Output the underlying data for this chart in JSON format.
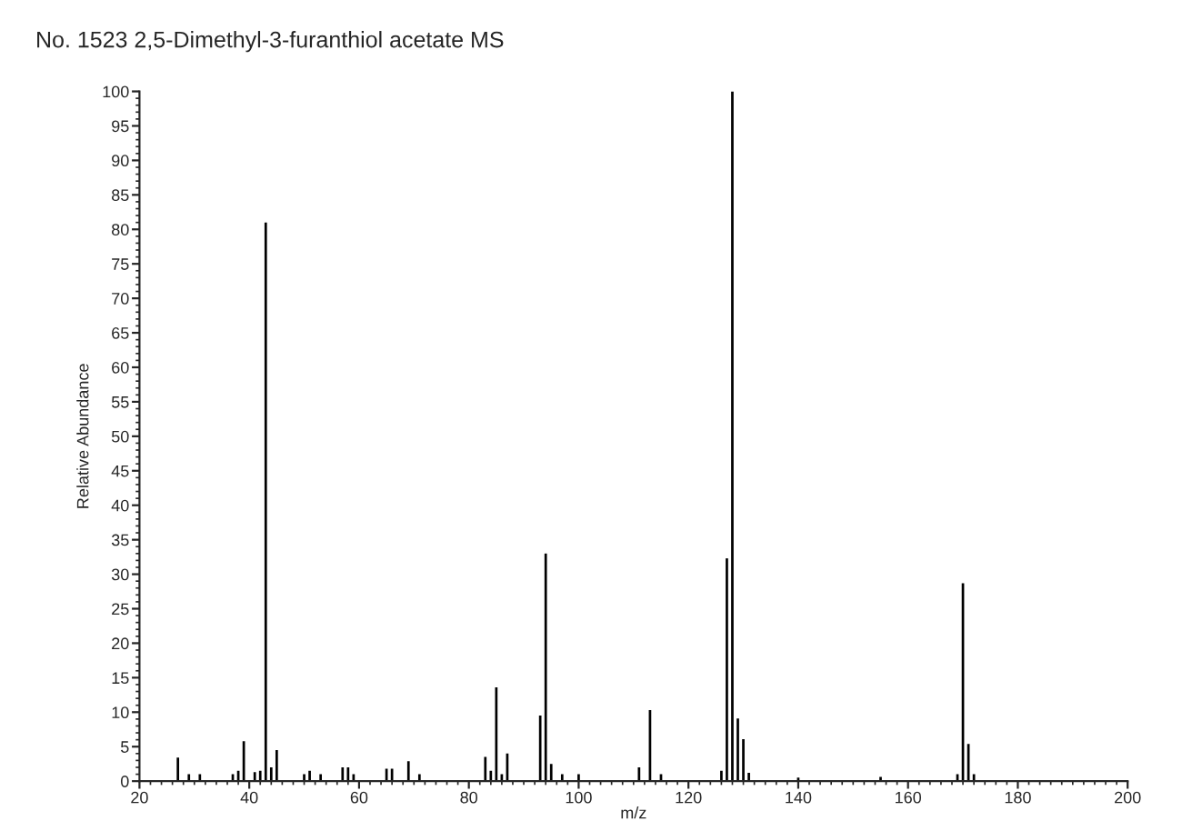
{
  "chart_data": {
    "type": "bar",
    "title": "No. 1523 2,5-Dimethyl-3-furanthiol acetate MS",
    "xlabel": "m/z",
    "ylabel": "Relative Abundance",
    "x": [
      27,
      29,
      31,
      37,
      38,
      39,
      41,
      42,
      43,
      44,
      45,
      50,
      51,
      53,
      57,
      58,
      59,
      65,
      66,
      69,
      71,
      83,
      84,
      85,
      86,
      87,
      93,
      94,
      95,
      97,
      100,
      111,
      113,
      115,
      126,
      127,
      128,
      129,
      130,
      131,
      140,
      155,
      169,
      170,
      171,
      172
    ],
    "values": [
      3.4,
      1,
      1,
      1,
      1.5,
      5.8,
      1.3,
      1.5,
      81,
      2,
      4.5,
      1,
      1.5,
      1,
      2,
      2,
      1,
      1.8,
      1.8,
      2.9,
      1,
      3.5,
      1.5,
      13.6,
      1,
      4,
      9.5,
      33,
      2.5,
      1,
      1,
      2,
      10.3,
      1,
      1.5,
      32.3,
      100,
      9.1,
      6.1,
      1.2,
      0.5,
      0.6,
      1,
      28.7,
      5.4,
      1
    ],
    "color": "#000000",
    "xlim": [
      20,
      200
    ],
    "xticks": [
      20,
      40,
      60,
      80,
      100,
      120,
      140,
      160,
      180,
      200
    ],
    "ylim": [
      0,
      100
    ],
    "yticks": [
      0,
      5,
      10,
      15,
      20,
      25,
      30,
      35,
      40,
      45,
      50,
      55,
      60,
      65,
      70,
      75,
      80,
      85,
      90,
      95,
      100
    ],
    "grid": false
  }
}
